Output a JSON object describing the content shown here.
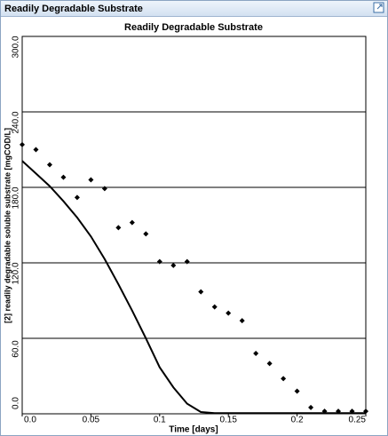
{
  "window": {
    "title": "Readily Degradable Substrate"
  },
  "chart_data": {
    "type": "line",
    "title": "Readily Degradable Substrate",
    "x_label": "Time [days]",
    "y_label": "[2] readily degradable soluble substrate [mgCOD/L]",
    "xlim": [
      0,
      0.25
    ],
    "ylim": [
      0,
      300
    ],
    "xticks": [
      {
        "value": 0,
        "label": "0.0"
      },
      0.05,
      0.1,
      0.15,
      0.2,
      0.25
    ],
    "yticks": [
      {
        "value": 0,
        "label": "0.0"
      },
      {
        "value": 60,
        "label": "60.0"
      },
      {
        "value": 120,
        "label": "120.0"
      },
      {
        "value": 180,
        "label": "180.0"
      },
      {
        "value": 240,
        "label": "240.0"
      },
      {
        "value": 300,
        "label": "300.0"
      }
    ],
    "grid": true,
    "series": [
      {
        "mode": "markers",
        "color": "#000000",
        "x": [
          0,
          0.01,
          0.02,
          0.03,
          0.04,
          0.05,
          0.06,
          0.07,
          0.08,
          0.09,
          0.1,
          0.11,
          0.12,
          0.13,
          0.14,
          0.15,
          0.16,
          0.17,
          0.18,
          0.19,
          0.2,
          0.21,
          0.22,
          0.23,
          0.24,
          0.25
        ],
        "values": [
          214,
          210,
          198,
          188,
          172,
          186,
          179,
          148,
          152,
          143,
          121,
          118,
          121,
          97,
          85,
          80,
          74,
          48,
          40,
          28,
          18,
          5,
          2,
          2,
          2,
          2
        ]
      },
      {
        "mode": "lines",
        "color": "#000000",
        "x": [
          0,
          0.01,
          0.02,
          0.03,
          0.04,
          0.05,
          0.06,
          0.07,
          0.08,
          0.09,
          0.1,
          0.11,
          0.12,
          0.13,
          0.14,
          0.15,
          0.16,
          0.17,
          0.18,
          0.19,
          0.2,
          0.21,
          0.22,
          0.23,
          0.24,
          0.25
        ],
        "values": [
          201,
          191,
          181,
          169,
          156,
          141,
          123,
          103,
          82,
          60,
          37,
          21,
          8,
          1.4,
          0.5,
          0.5,
          0.5,
          0.5,
          0.5,
          0.5,
          0.5,
          0.5,
          0.5,
          0.5,
          0.5,
          0.5
        ]
      }
    ]
  }
}
